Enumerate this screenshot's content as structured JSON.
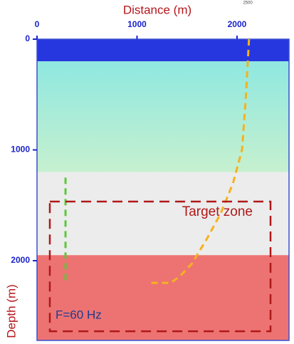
{
  "chart_data": {
    "type": "line",
    "xlabel": "Distance (m)",
    "ylabel": "Depth (m)",
    "xlim": [
      0,
      2520
    ],
    "ylim": [
      0,
      2720
    ],
    "xticks": [
      0,
      1000,
      2000
    ],
    "yticks": [
      0,
      1000,
      2000
    ],
    "corner_label": "2500",
    "layers": [
      {
        "top": 0,
        "bottom": 200,
        "color": "#2637e0"
      },
      {
        "top": 200,
        "bottom": 1200,
        "color": "#a8ecdc"
      },
      {
        "top": 1200,
        "bottom": 1950,
        "color": "#ececec"
      },
      {
        "top": 1950,
        "bottom": 2720,
        "color": "#ea5a5a"
      }
    ],
    "series": [
      {
        "color": "#5cc83a",
        "x": [
          285,
          285
        ],
        "values": [
          1250,
          2200
        ]
      },
      {
        "color": "#f5b21c",
        "x": [
          2120,
          2090,
          2050,
          1960,
          1836,
          1700,
          1550,
          1430,
          1338,
          1125
        ],
        "values": [
          0,
          500,
          1000,
          1300,
          1575,
          1800,
          2025,
          2140,
          2200,
          2200
        ]
      }
    ],
    "target_box": {
      "label": "Target zone",
      "color": "#b01818",
      "x": [
        128,
        2335
      ],
      "y": [
        1466,
        2637
      ]
    },
    "annotation": "F=60 Hz"
  }
}
